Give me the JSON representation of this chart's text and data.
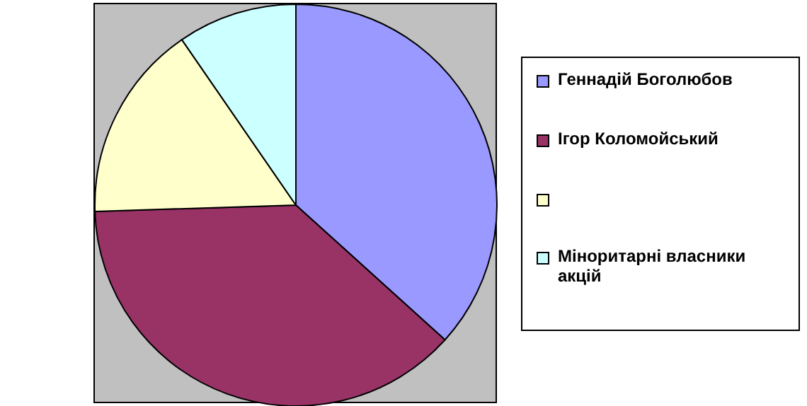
{
  "chart_data": {
    "type": "pie",
    "categories": [
      "Геннадій Боголюбов",
      "Ігор Коломойський",
      null,
      "Міноритарні власники акцій"
    ],
    "values": [
      36.7,
      37.8,
      15.9,
      9.6
    ],
    "colors": [
      "#9999ff",
      "#993366",
      "#ffffcc",
      "#ccffff"
    ],
    "legend": "right"
  }
}
